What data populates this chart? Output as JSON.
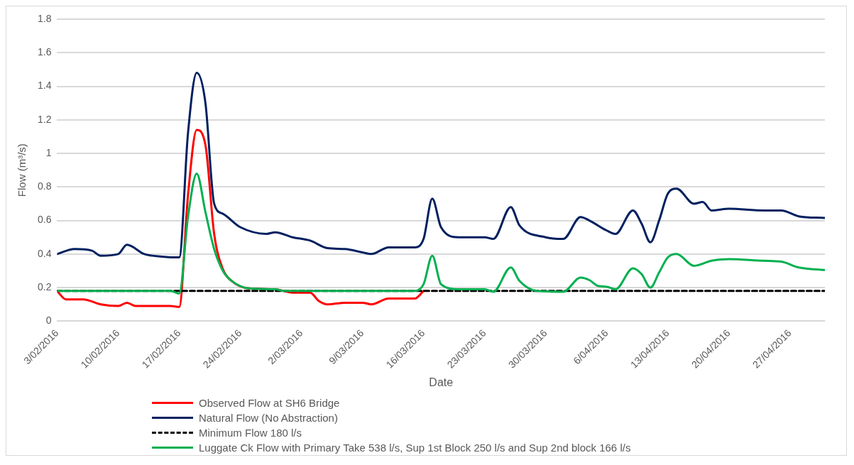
{
  "chart_data": {
    "type": "line",
    "xlabel": "Date",
    "ylabel": "Flow (m³/s)",
    "xlim": [
      "2016-02-03",
      "2016-05-01"
    ],
    "xticks": [
      {
        "value": "2016-02-03",
        "label": "3/02/2016"
      },
      {
        "value": "2016-02-10",
        "label": "10/02/2016"
      },
      {
        "value": "2016-02-17",
        "label": "17/02/2016"
      },
      {
        "value": "2016-02-24",
        "label": "24/02/2016"
      },
      {
        "value": "2016-03-02",
        "label": "2/03/2016"
      },
      {
        "value": "2016-03-09",
        "label": "9/03/2016"
      },
      {
        "value": "2016-03-16",
        "label": "16/03/2016"
      },
      {
        "value": "2016-03-23",
        "label": "23/03/2016"
      },
      {
        "value": "2016-03-30",
        "label": "30/03/2016"
      },
      {
        "value": "2016-04-06",
        "label": "6/04/2016"
      },
      {
        "value": "2016-04-13",
        "label": "13/04/2016"
      },
      {
        "value": "2016-04-20",
        "label": "20/04/2016"
      },
      {
        "value": "2016-04-27",
        "label": "27/04/2016"
      }
    ],
    "ylim": [
      0,
      1.8
    ],
    "yticks": [
      0,
      0.2,
      0.4,
      0.6,
      0.8,
      1,
      1.2,
      1.4,
      1.6,
      1.8
    ],
    "grid": "y",
    "legend": "bottom",
    "marker": "none",
    "series": [
      {
        "name": "Observed Flow at SH6 Bridge",
        "color": "#ff0000",
        "x": [
          "2016-02-03",
          "2016-02-04",
          "2016-02-06",
          "2016-02-08",
          "2016-02-10",
          "2016-02-11",
          "2016-02-12",
          "2016-02-16",
          "2016-02-17",
          "2016-02-18",
          "2016-02-19",
          "2016-02-20",
          "2016-02-21",
          "2016-02-22",
          "2016-02-23",
          "2016-02-25",
          "2016-02-28",
          "2016-03-01",
          "2016-03-03",
          "2016-03-04",
          "2016-03-05",
          "2016-03-07",
          "2016-03-09",
          "2016-03-10",
          "2016-03-12",
          "2016-03-15",
          "2016-03-16"
        ],
        "values": [
          0.18,
          0.13,
          0.13,
          0.1,
          0.09,
          0.11,
          0.09,
          0.09,
          0.085,
          0.75,
          1.14,
          1.05,
          0.52,
          0.31,
          0.24,
          0.195,
          0.19,
          0.17,
          0.17,
          0.12,
          0.1,
          0.11,
          0.11,
          0.1,
          0.135,
          0.135,
          0.18
        ]
      },
      {
        "name": "Natural Flow (No Abstraction)",
        "color": "#002060",
        "x": [
          "2016-02-03",
          "2016-02-05",
          "2016-02-07",
          "2016-02-08",
          "2016-02-10",
          "2016-02-11",
          "2016-02-13",
          "2016-02-15",
          "2016-02-17",
          "2016-02-18",
          "2016-02-19",
          "2016-02-20",
          "2016-02-21",
          "2016-02-22",
          "2016-02-24",
          "2016-02-27",
          "2016-02-28",
          "2016-03-01",
          "2016-03-03",
          "2016-03-05",
          "2016-03-07",
          "2016-03-09",
          "2016-03-10",
          "2016-03-12",
          "2016-03-15",
          "2016-03-16",
          "2016-03-17",
          "2016-03-18",
          "2016-03-20",
          "2016-03-23",
          "2016-03-24",
          "2016-03-26",
          "2016-03-27",
          "2016-03-30",
          "2016-04-01",
          "2016-04-03",
          "2016-04-04",
          "2016-04-06",
          "2016-04-07",
          "2016-04-09",
          "2016-04-10",
          "2016-04-11",
          "2016-04-12",
          "2016-04-13",
          "2016-04-14",
          "2016-04-16",
          "2016-04-17",
          "2016-04-18",
          "2016-04-20",
          "2016-04-24",
          "2016-04-26",
          "2016-04-28",
          "2016-05-01"
        ],
        "values": [
          0.4,
          0.43,
          0.42,
          0.39,
          0.4,
          0.455,
          0.4,
          0.385,
          0.38,
          1.12,
          1.48,
          1.3,
          0.7,
          0.64,
          0.56,
          0.52,
          0.53,
          0.5,
          0.48,
          0.435,
          0.43,
          0.41,
          0.4,
          0.44,
          0.44,
          0.49,
          0.73,
          0.56,
          0.5,
          0.5,
          0.49,
          0.68,
          0.57,
          0.5,
          0.49,
          0.62,
          0.6,
          0.54,
          0.52,
          0.66,
          0.58,
          0.47,
          0.6,
          0.76,
          0.79,
          0.7,
          0.71,
          0.66,
          0.67,
          0.66,
          0.66,
          0.625,
          0.615
        ]
      },
      {
        "name": "Minimum Flow 180 l/s",
        "color": "#000000",
        "line_style": "dashed",
        "x": [
          "2016-02-03",
          "2016-05-01"
        ],
        "values": [
          0.18,
          0.18
        ]
      },
      {
        "name": "Luggate Ck Flow with Primary Take 538 l/s, Sup 1st Block 250 l/s and Sup 2nd block 166 l/s",
        "color": "#00b050",
        "x": [
          "2016-02-03",
          "2016-02-16",
          "2016-02-17",
          "2016-02-18",
          "2016-02-19",
          "2016-02-20",
          "2016-02-21",
          "2016-02-22",
          "2016-02-23",
          "2016-02-25",
          "2016-02-28",
          "2016-02-29",
          "2016-03-15",
          "2016-03-16",
          "2016-03-17",
          "2016-03-18",
          "2016-03-20",
          "2016-03-23",
          "2016-03-24",
          "2016-03-26",
          "2016-03-27",
          "2016-03-29",
          "2016-04-01",
          "2016-04-03",
          "2016-04-04",
          "2016-04-05",
          "2016-04-06",
          "2016-04-07",
          "2016-04-09",
          "2016-04-10",
          "2016-04-11",
          "2016-04-12",
          "2016-04-13",
          "2016-04-14",
          "2016-04-16",
          "2016-04-18",
          "2016-04-20",
          "2016-04-24",
          "2016-04-26",
          "2016-04-28",
          "2016-05-01"
        ],
        "values": [
          0.18,
          0.18,
          0.165,
          0.62,
          0.88,
          0.65,
          0.43,
          0.3,
          0.24,
          0.195,
          0.19,
          0.18,
          0.18,
          0.22,
          0.39,
          0.22,
          0.19,
          0.19,
          0.175,
          0.32,
          0.24,
          0.18,
          0.175,
          0.26,
          0.245,
          0.21,
          0.205,
          0.19,
          0.315,
          0.28,
          0.2,
          0.29,
          0.38,
          0.4,
          0.33,
          0.36,
          0.37,
          0.36,
          0.355,
          0.32,
          0.305
        ]
      }
    ]
  }
}
